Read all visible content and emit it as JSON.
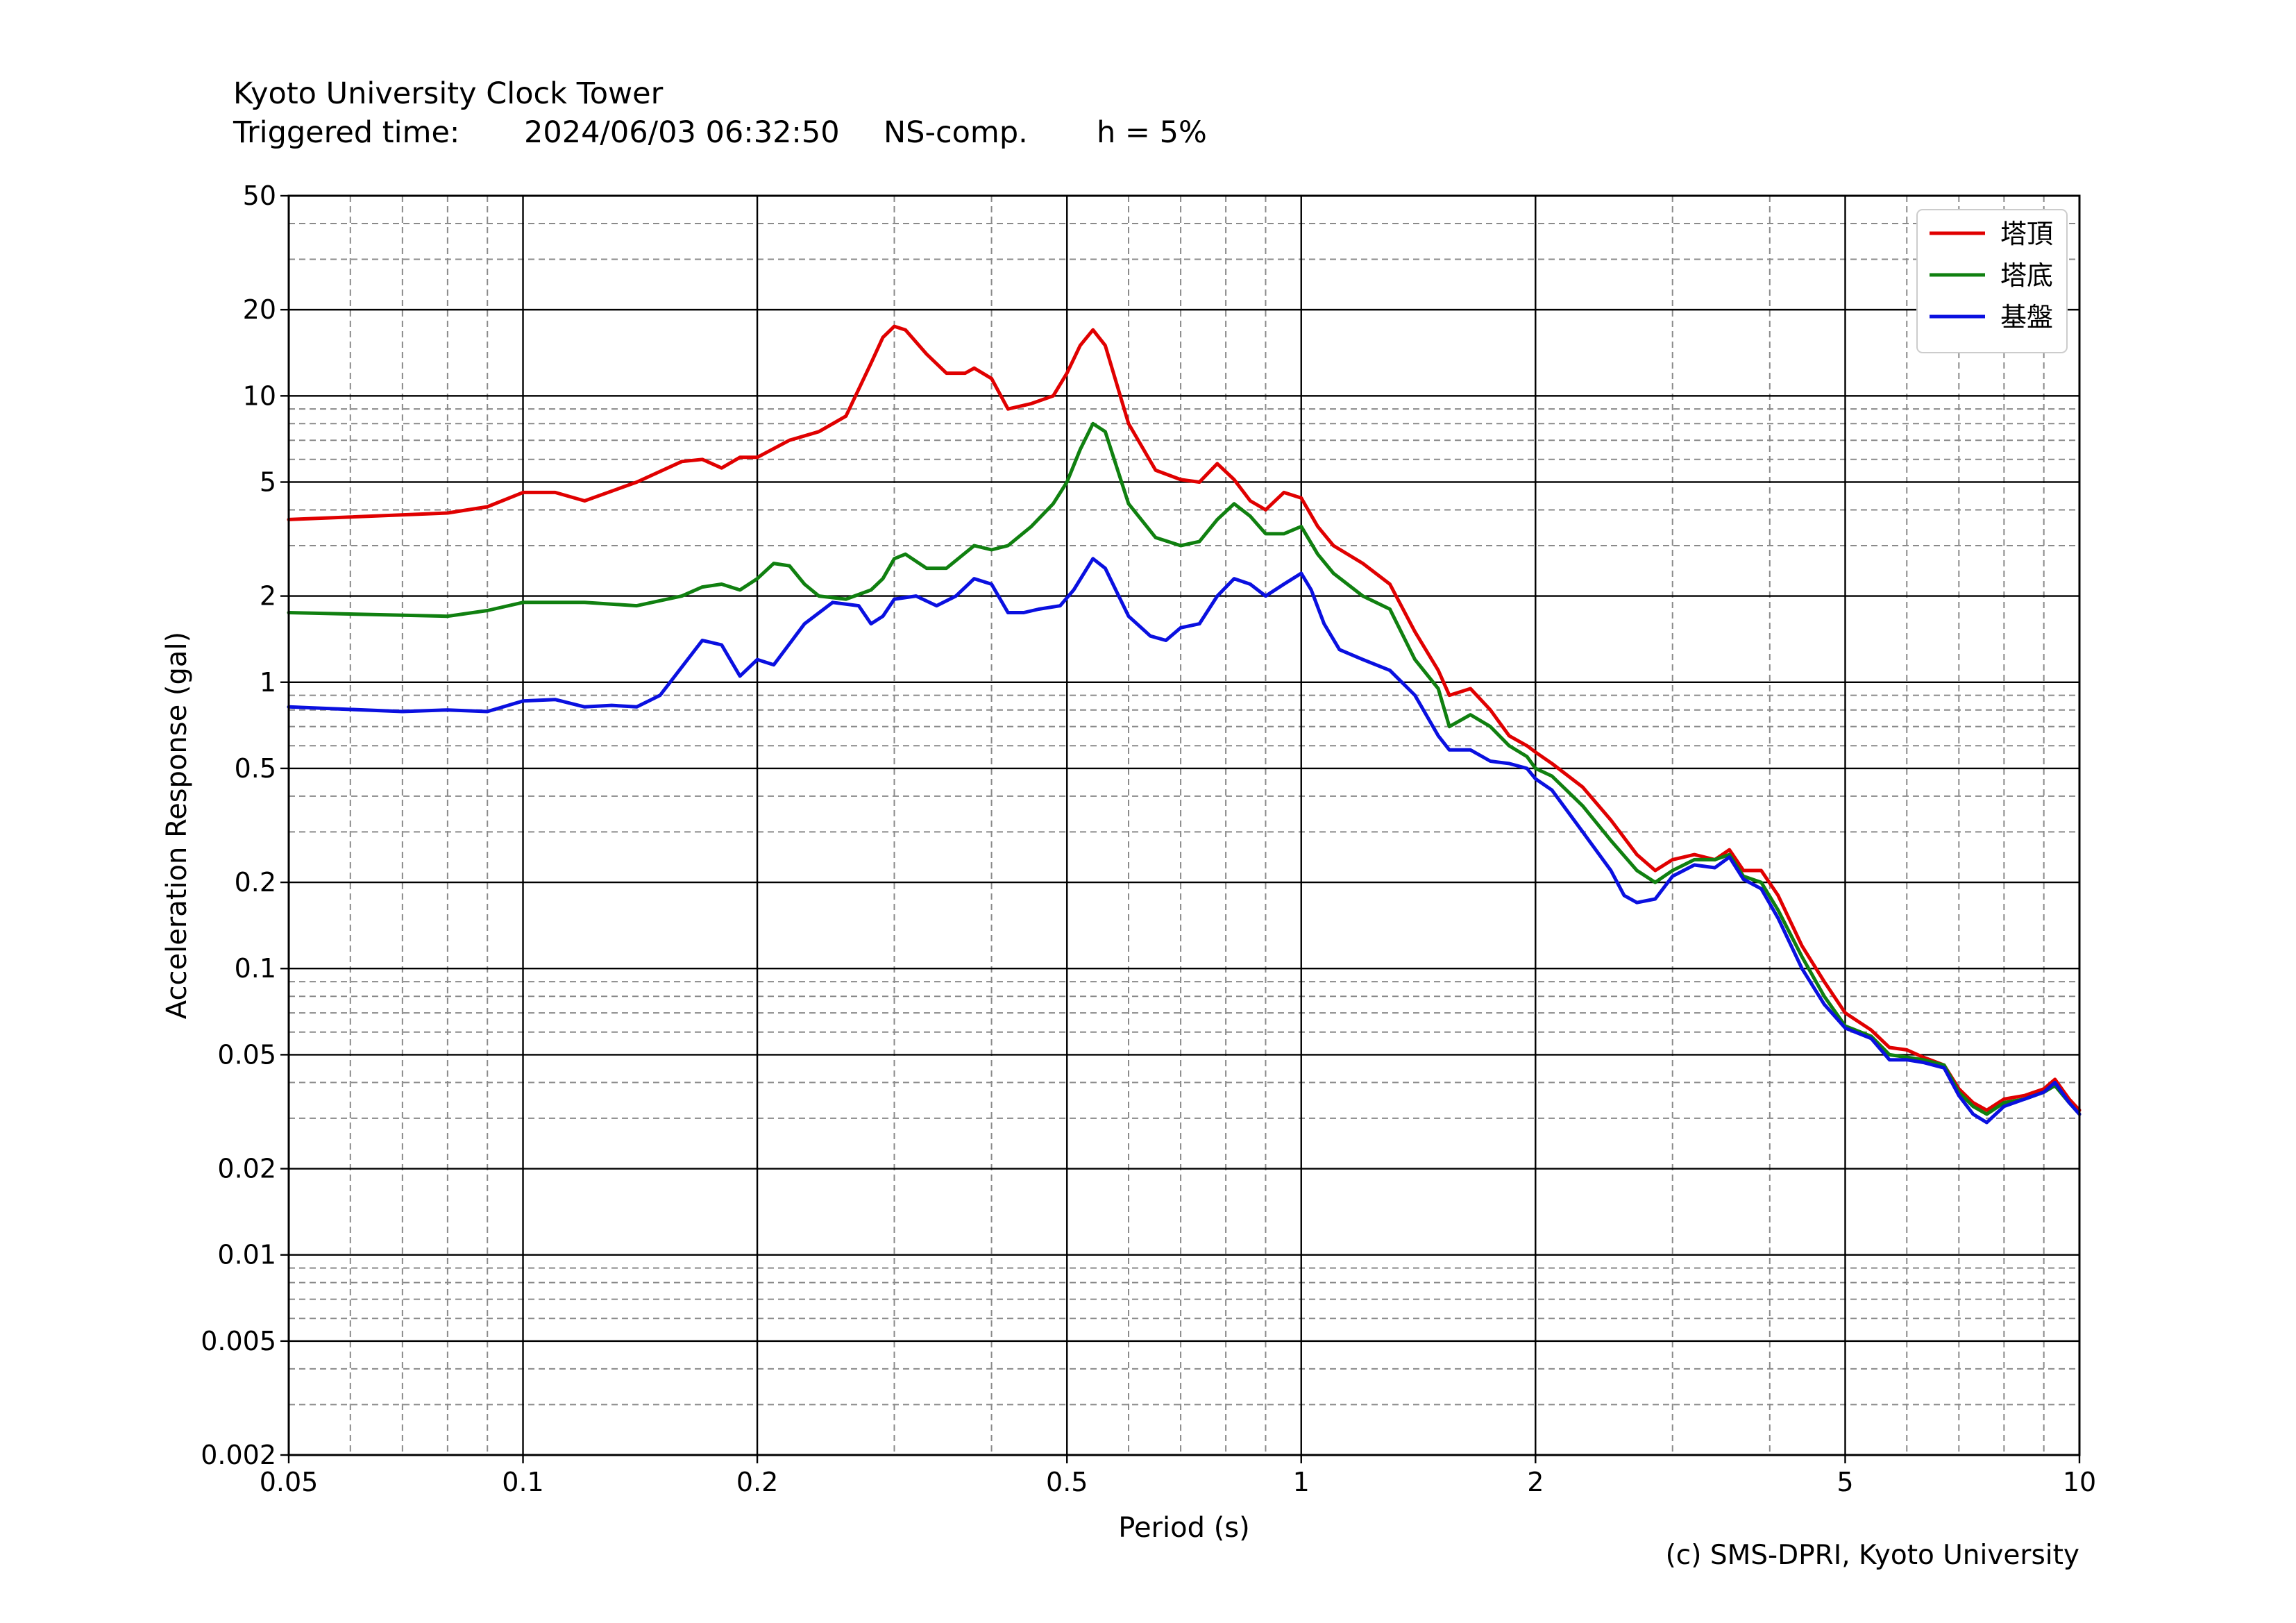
{
  "header": {
    "title": "Kyoto University Clock Tower",
    "trigger_label": "Triggered time:",
    "trigger_time": "2024/06/03 06:32:50",
    "component": "NS-comp.",
    "damping": "h = 5%"
  },
  "credit": "(c) SMS-DPRI, Kyoto University",
  "chart_data": {
    "type": "line",
    "title": "",
    "xlabel": "Period (s)",
    "ylabel": "Acceleration Response (gal)",
    "x_scale": "log",
    "y_scale": "log",
    "xlim": [
      0.05,
      10
    ],
    "ylim": [
      0.002,
      50
    ],
    "x_ticks": [
      {
        "value": 0.05,
        "label": "0.05"
      },
      {
        "value": 0.1,
        "label": "0.1"
      },
      {
        "value": 0.2,
        "label": "0.2"
      },
      {
        "value": 0.5,
        "label": "0.5"
      },
      {
        "value": 1,
        "label": "1"
      },
      {
        "value": 2,
        "label": "2"
      },
      {
        "value": 5,
        "label": "5"
      },
      {
        "value": 10,
        "label": "10"
      }
    ],
    "y_ticks": [
      {
        "value": 0.002,
        "label": "0.002"
      },
      {
        "value": 0.005,
        "label": "0.005"
      },
      {
        "value": 0.01,
        "label": "0.01"
      },
      {
        "value": 0.02,
        "label": "0.02"
      },
      {
        "value": 0.05,
        "label": "0.05"
      },
      {
        "value": 0.1,
        "label": "0.1"
      },
      {
        "value": 0.2,
        "label": "0.2"
      },
      {
        "value": 0.5,
        "label": "0.5"
      },
      {
        "value": 1,
        "label": "1"
      },
      {
        "value": 2,
        "label": "2"
      },
      {
        "value": 5,
        "label": "5"
      },
      {
        "value": 10,
        "label": "10"
      },
      {
        "value": 20,
        "label": "20"
      },
      {
        "value": 50,
        "label": "50"
      }
    ],
    "grid": {
      "major": true,
      "minor": true
    },
    "legend_position": "top-right",
    "series": [
      {
        "name": "塔頂",
        "color": "#e00000",
        "points": [
          [
            0.05,
            3.7
          ],
          [
            0.08,
            3.9
          ],
          [
            0.09,
            4.1
          ],
          [
            0.1,
            4.6
          ],
          [
            0.11,
            4.6
          ],
          [
            0.12,
            4.3
          ],
          [
            0.14,
            5.0
          ],
          [
            0.16,
            5.9
          ],
          [
            0.17,
            6.0
          ],
          [
            0.18,
            5.6
          ],
          [
            0.19,
            6.1
          ],
          [
            0.2,
            6.1
          ],
          [
            0.22,
            7.0
          ],
          [
            0.24,
            7.5
          ],
          [
            0.26,
            8.5
          ],
          [
            0.28,
            13
          ],
          [
            0.29,
            16
          ],
          [
            0.3,
            17.5
          ],
          [
            0.31,
            17
          ],
          [
            0.33,
            14
          ],
          [
            0.35,
            12
          ],
          [
            0.37,
            12
          ],
          [
            0.38,
            12.5
          ],
          [
            0.4,
            11.5
          ],
          [
            0.42,
            9.0
          ],
          [
            0.45,
            9.4
          ],
          [
            0.48,
            10
          ],
          [
            0.5,
            12
          ],
          [
            0.52,
            15
          ],
          [
            0.54,
            17
          ],
          [
            0.56,
            15
          ],
          [
            0.6,
            8
          ],
          [
            0.65,
            5.5
          ],
          [
            0.7,
            5.1
          ],
          [
            0.74,
            5.0
          ],
          [
            0.78,
            5.8
          ],
          [
            0.82,
            5.1
          ],
          [
            0.86,
            4.3
          ],
          [
            0.9,
            4.0
          ],
          [
            0.95,
            4.6
          ],
          [
            1.0,
            4.4
          ],
          [
            1.05,
            3.5
          ],
          [
            1.1,
            3.0
          ],
          [
            1.2,
            2.6
          ],
          [
            1.3,
            2.2
          ],
          [
            1.4,
            1.5
          ],
          [
            1.5,
            1.1
          ],
          [
            1.55,
            0.9
          ],
          [
            1.65,
            0.95
          ],
          [
            1.75,
            0.8
          ],
          [
            1.85,
            0.65
          ],
          [
            1.95,
            0.6
          ],
          [
            2.0,
            0.57
          ],
          [
            2.1,
            0.52
          ],
          [
            2.3,
            0.43
          ],
          [
            2.5,
            0.33
          ],
          [
            2.7,
            0.25
          ],
          [
            2.85,
            0.22
          ],
          [
            3.0,
            0.24
          ],
          [
            3.2,
            0.25
          ],
          [
            3.4,
            0.24
          ],
          [
            3.55,
            0.26
          ],
          [
            3.7,
            0.22
          ],
          [
            3.9,
            0.22
          ],
          [
            4.1,
            0.18
          ],
          [
            4.4,
            0.12
          ],
          [
            4.7,
            0.09
          ],
          [
            5.0,
            0.07
          ],
          [
            5.4,
            0.061
          ],
          [
            5.7,
            0.053
          ],
          [
            6.0,
            0.052
          ],
          [
            6.3,
            0.049
          ],
          [
            6.7,
            0.046
          ],
          [
            7.0,
            0.038
          ],
          [
            7.3,
            0.034
          ],
          [
            7.6,
            0.032
          ],
          [
            8.0,
            0.035
          ],
          [
            8.5,
            0.036
          ],
          [
            9.0,
            0.038
          ],
          [
            9.3,
            0.041
          ],
          [
            9.7,
            0.035
          ],
          [
            10,
            0.032
          ]
        ]
      },
      {
        "name": "塔底",
        "color": "#108010",
        "points": [
          [
            0.05,
            1.75
          ],
          [
            0.08,
            1.7
          ],
          [
            0.09,
            1.78
          ],
          [
            0.1,
            1.9
          ],
          [
            0.12,
            1.9
          ],
          [
            0.14,
            1.85
          ],
          [
            0.16,
            2.0
          ],
          [
            0.17,
            2.15
          ],
          [
            0.18,
            2.2
          ],
          [
            0.19,
            2.1
          ],
          [
            0.2,
            2.3
          ],
          [
            0.21,
            2.6
          ],
          [
            0.22,
            2.55
          ],
          [
            0.23,
            2.2
          ],
          [
            0.24,
            2.0
          ],
          [
            0.26,
            1.95
          ],
          [
            0.28,
            2.1
          ],
          [
            0.29,
            2.3
          ],
          [
            0.3,
            2.7
          ],
          [
            0.31,
            2.8
          ],
          [
            0.33,
            2.5
          ],
          [
            0.35,
            2.5
          ],
          [
            0.38,
            3.0
          ],
          [
            0.4,
            2.9
          ],
          [
            0.42,
            3.0
          ],
          [
            0.45,
            3.5
          ],
          [
            0.48,
            4.2
          ],
          [
            0.5,
            5.0
          ],
          [
            0.52,
            6.5
          ],
          [
            0.54,
            8.0
          ],
          [
            0.56,
            7.5
          ],
          [
            0.6,
            4.2
          ],
          [
            0.65,
            3.2
          ],
          [
            0.7,
            3.0
          ],
          [
            0.74,
            3.1
          ],
          [
            0.78,
            3.7
          ],
          [
            0.82,
            4.2
          ],
          [
            0.86,
            3.8
          ],
          [
            0.9,
            3.3
          ],
          [
            0.95,
            3.3
          ],
          [
            1.0,
            3.5
          ],
          [
            1.05,
            2.8
          ],
          [
            1.1,
            2.4
          ],
          [
            1.2,
            2.0
          ],
          [
            1.3,
            1.8
          ],
          [
            1.4,
            1.2
          ],
          [
            1.5,
            0.95
          ],
          [
            1.55,
            0.7
          ],
          [
            1.65,
            0.77
          ],
          [
            1.75,
            0.7
          ],
          [
            1.85,
            0.6
          ],
          [
            1.95,
            0.55
          ],
          [
            2.0,
            0.5
          ],
          [
            2.1,
            0.47
          ],
          [
            2.3,
            0.37
          ],
          [
            2.5,
            0.28
          ],
          [
            2.7,
            0.22
          ],
          [
            2.85,
            0.2
          ],
          [
            3.0,
            0.22
          ],
          [
            3.2,
            0.24
          ],
          [
            3.4,
            0.24
          ],
          [
            3.55,
            0.25
          ],
          [
            3.7,
            0.21
          ],
          [
            3.9,
            0.2
          ],
          [
            4.1,
            0.16
          ],
          [
            4.4,
            0.11
          ],
          [
            4.7,
            0.08
          ],
          [
            5.0,
            0.063
          ],
          [
            5.4,
            0.058
          ],
          [
            5.7,
            0.05
          ],
          [
            6.0,
            0.049
          ],
          [
            6.3,
            0.048
          ],
          [
            6.7,
            0.046
          ],
          [
            7.0,
            0.037
          ],
          [
            7.3,
            0.033
          ],
          [
            7.6,
            0.031
          ],
          [
            8.0,
            0.034
          ],
          [
            8.5,
            0.035
          ],
          [
            9.0,
            0.037
          ],
          [
            9.3,
            0.039
          ],
          [
            9.7,
            0.034
          ],
          [
            10,
            0.031
          ]
        ]
      },
      {
        "name": "基盤",
        "color": "#0a10e0",
        "points": [
          [
            0.05,
            0.82
          ],
          [
            0.07,
            0.79
          ],
          [
            0.08,
            0.8
          ],
          [
            0.09,
            0.79
          ],
          [
            0.1,
            0.86
          ],
          [
            0.11,
            0.87
          ],
          [
            0.12,
            0.82
          ],
          [
            0.13,
            0.83
          ],
          [
            0.14,
            0.82
          ],
          [
            0.15,
            0.9
          ],
          [
            0.17,
            1.4
          ],
          [
            0.18,
            1.35
          ],
          [
            0.19,
            1.05
          ],
          [
            0.2,
            1.2
          ],
          [
            0.21,
            1.15
          ],
          [
            0.23,
            1.6
          ],
          [
            0.25,
            1.9
          ],
          [
            0.27,
            1.85
          ],
          [
            0.28,
            1.6
          ],
          [
            0.29,
            1.7
          ],
          [
            0.3,
            1.95
          ],
          [
            0.32,
            2.0
          ],
          [
            0.34,
            1.85
          ],
          [
            0.36,
            2.0
          ],
          [
            0.38,
            2.3
          ],
          [
            0.4,
            2.2
          ],
          [
            0.42,
            1.75
          ],
          [
            0.44,
            1.75
          ],
          [
            0.46,
            1.8
          ],
          [
            0.49,
            1.85
          ],
          [
            0.51,
            2.1
          ],
          [
            0.54,
            2.7
          ],
          [
            0.56,
            2.5
          ],
          [
            0.6,
            1.7
          ],
          [
            0.64,
            1.45
          ],
          [
            0.67,
            1.4
          ],
          [
            0.7,
            1.55
          ],
          [
            0.74,
            1.6
          ],
          [
            0.78,
            2.0
          ],
          [
            0.82,
            2.3
          ],
          [
            0.86,
            2.2
          ],
          [
            0.9,
            2.0
          ],
          [
            0.95,
            2.2
          ],
          [
            1.0,
            2.4
          ],
          [
            1.03,
            2.1
          ],
          [
            1.07,
            1.6
          ],
          [
            1.12,
            1.3
          ],
          [
            1.2,
            1.2
          ],
          [
            1.3,
            1.1
          ],
          [
            1.4,
            0.9
          ],
          [
            1.5,
            0.65
          ],
          [
            1.55,
            0.58
          ],
          [
            1.65,
            0.58
          ],
          [
            1.75,
            0.53
          ],
          [
            1.85,
            0.52
          ],
          [
            1.95,
            0.5
          ],
          [
            2.0,
            0.46
          ],
          [
            2.1,
            0.42
          ],
          [
            2.3,
            0.3
          ],
          [
            2.5,
            0.22
          ],
          [
            2.6,
            0.18
          ],
          [
            2.7,
            0.17
          ],
          [
            2.85,
            0.175
          ],
          [
            3.0,
            0.21
          ],
          [
            3.2,
            0.23
          ],
          [
            3.4,
            0.225
          ],
          [
            3.55,
            0.245
          ],
          [
            3.7,
            0.205
          ],
          [
            3.9,
            0.19
          ],
          [
            4.1,
            0.15
          ],
          [
            4.4,
            0.1
          ],
          [
            4.7,
            0.075
          ],
          [
            5.0,
            0.062
          ],
          [
            5.4,
            0.057
          ],
          [
            5.7,
            0.048
          ],
          [
            6.0,
            0.048
          ],
          [
            6.3,
            0.047
          ],
          [
            6.7,
            0.045
          ],
          [
            7.0,
            0.036
          ],
          [
            7.3,
            0.031
          ],
          [
            7.6,
            0.029
          ],
          [
            8.0,
            0.033
          ],
          [
            8.5,
            0.035
          ],
          [
            9.0,
            0.037
          ],
          [
            9.3,
            0.04
          ],
          [
            9.7,
            0.034
          ],
          [
            10,
            0.031
          ]
        ]
      }
    ]
  }
}
